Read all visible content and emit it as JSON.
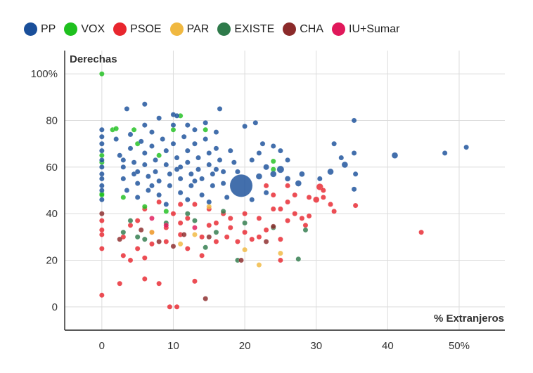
{
  "chart_data": {
    "type": "scatter",
    "xlabel": "% Extranjeros",
    "ylabel": "Derechas",
    "xlim": [
      -5.2,
      56.4
    ],
    "ylim": [
      -10,
      110
    ],
    "x_ticks": [
      "0",
      "10",
      "20",
      "30",
      "40",
      "50%"
    ],
    "x_tick_values": [
      0,
      10,
      20,
      30,
      40,
      50
    ],
    "y_ticks": [
      "0",
      "20",
      "40",
      "60",
      "80",
      "100%"
    ],
    "y_tick_values": [
      0,
      20,
      40,
      60,
      80,
      100
    ],
    "grid": true,
    "legend_placement": "top-left",
    "point_format": "[x, y, relative_size]",
    "series": [
      {
        "name": "PP",
        "color": "#1a4f9a",
        "points": [
          [
            0,
            76,
            1
          ],
          [
            0,
            73,
            1
          ],
          [
            0,
            70,
            1
          ],
          [
            0,
            67,
            1
          ],
          [
            0,
            63,
            1
          ],
          [
            0,
            60,
            1
          ],
          [
            0,
            57,
            1
          ],
          [
            0,
            55,
            1
          ],
          [
            0,
            52,
            1
          ],
          [
            0,
            50,
            1
          ],
          [
            0,
            46,
            1
          ],
          [
            3.5,
            85,
            1
          ],
          [
            6,
            87,
            1
          ],
          [
            8,
            81,
            1
          ],
          [
            10,
            82.5,
            1
          ],
          [
            10.5,
            82,
            1
          ],
          [
            12,
            78,
            1
          ],
          [
            14.5,
            79,
            1
          ],
          [
            16.5,
            85,
            1
          ],
          [
            20,
            77.5,
            1
          ],
          [
            21.5,
            79,
            1
          ],
          [
            22.5,
            70,
            1
          ],
          [
            24,
            69,
            1
          ],
          [
            25,
            67,
            1
          ],
          [
            26,
            63,
            1
          ],
          [
            30.5,
            55,
            1
          ],
          [
            32,
            58,
            1.5
          ],
          [
            32.5,
            70,
            1
          ],
          [
            33.5,
            64,
            1
          ],
          [
            34,
            61,
            1.5
          ],
          [
            35.3,
            80,
            1
          ],
          [
            35.3,
            66,
            1
          ],
          [
            35.5,
            57,
            1
          ],
          [
            35.3,
            50.5,
            1
          ],
          [
            41,
            65,
            1.5
          ],
          [
            48,
            66,
            1
          ],
          [
            51,
            68.5,
            1
          ],
          [
            25,
            59,
            2
          ],
          [
            27.5,
            53,
            1.5
          ],
          [
            24,
            57,
            1.5
          ],
          [
            22,
            56,
            1.5
          ],
          [
            23,
            60,
            1.3
          ],
          [
            26,
            55,
            1.2
          ],
          [
            28,
            57,
            1.2
          ],
          [
            2,
            72,
            1
          ],
          [
            2.5,
            65,
            1
          ],
          [
            3,
            60,
            1
          ],
          [
            3,
            55,
            1
          ],
          [
            3.5,
            50,
            1
          ],
          [
            4,
            74,
            1
          ],
          [
            4,
            68,
            1
          ],
          [
            4.5,
            62,
            1
          ],
          [
            4.5,
            57,
            1
          ],
          [
            5,
            53,
            1
          ],
          [
            5,
            47,
            1
          ],
          [
            5.5,
            71,
            1
          ],
          [
            6,
            66,
            1
          ],
          [
            6,
            61,
            1
          ],
          [
            6.5,
            56,
            1
          ],
          [
            6.5,
            50,
            1
          ],
          [
            7,
            75,
            1
          ],
          [
            7,
            69,
            1
          ],
          [
            7.5,
            63,
            1
          ],
          [
            7.5,
            58,
            1
          ],
          [
            8,
            54,
            1
          ],
          [
            8,
            48,
            1
          ],
          [
            8.5,
            72,
            1
          ],
          [
            9,
            67,
            1
          ],
          [
            9,
            61,
            1
          ],
          [
            9.5,
            57,
            1
          ],
          [
            9.5,
            52,
            1
          ],
          [
            10,
            78,
            1
          ],
          [
            10,
            70,
            1
          ],
          [
            10.5,
            64,
            1
          ],
          [
            10.5,
            59,
            1
          ],
          [
            11,
            55,
            1
          ],
          [
            11,
            49,
            1
          ],
          [
            11.5,
            73,
            1
          ],
          [
            12,
            67,
            1
          ],
          [
            12,
            62,
            1
          ],
          [
            12.5,
            57,
            1
          ],
          [
            12.5,
            52,
            1
          ],
          [
            13,
            76,
            1
          ],
          [
            13,
            70,
            1
          ],
          [
            13.5,
            64,
            1
          ],
          [
            13.5,
            59,
            1
          ],
          [
            14,
            55,
            1
          ],
          [
            14,
            48,
            1
          ],
          [
            14.5,
            72,
            1
          ],
          [
            15,
            66,
            1
          ],
          [
            15,
            61,
            1
          ],
          [
            15.5,
            57,
            1
          ],
          [
            15.5,
            52,
            1
          ],
          [
            16,
            75,
            1
          ],
          [
            16,
            68,
            1
          ],
          [
            16.5,
            63,
            1
          ],
          [
            17,
            58,
            1
          ],
          [
            17,
            53,
            1
          ],
          [
            17.5,
            47,
            1
          ],
          [
            18,
            67,
            1
          ],
          [
            18.5,
            62,
            1
          ],
          [
            19,
            58,
            1
          ],
          [
            21,
            63,
            1
          ],
          [
            21,
            46,
            1
          ],
          [
            22,
            66,
            1
          ],
          [
            23,
            49,
            1
          ],
          [
            6,
            78,
            1
          ],
          [
            9,
            44,
            1
          ],
          [
            12,
            46,
            1
          ],
          [
            15,
            45,
            1
          ],
          [
            3,
            63,
            1
          ],
          [
            5,
            58,
            1
          ],
          [
            7,
            52,
            1
          ],
          [
            11,
            60,
            1
          ],
          [
            13,
            54,
            1
          ],
          [
            16,
            59,
            1
          ],
          [
            19.5,
            52,
            20
          ]
        ]
      },
      {
        "name": "VOX",
        "color": "#1ec01e",
        "points": [
          [
            0,
            100,
            1
          ],
          [
            0,
            65,
            1
          ],
          [
            0,
            62,
            1
          ],
          [
            0,
            48.5,
            1
          ],
          [
            0,
            48,
            1
          ],
          [
            1.5,
            76,
            1
          ],
          [
            2,
            76.5,
            1
          ],
          [
            4.5,
            76,
            1
          ],
          [
            10,
            76,
            1
          ],
          [
            11,
            82,
            1
          ],
          [
            14.5,
            76,
            1
          ],
          [
            8,
            65,
            1
          ],
          [
            5,
            70,
            1
          ],
          [
            24,
            62.5,
            1
          ],
          [
            24,
            59,
            1
          ],
          [
            3,
            47,
            1
          ],
          [
            6,
            43,
            1
          ],
          [
            9,
            41,
            1
          ]
        ]
      },
      {
        "name": "PSOE",
        "color": "#e8262e",
        "points": [
          [
            0,
            5,
            1
          ],
          [
            0,
            25,
            1
          ],
          [
            0,
            31,
            1
          ],
          [
            0,
            33,
            1
          ],
          [
            0,
            37,
            1
          ],
          [
            2.5,
            10,
            1
          ],
          [
            6,
            12,
            1
          ],
          [
            8,
            10,
            1
          ],
          [
            9.5,
            0,
            1
          ],
          [
            10.5,
            0,
            1
          ],
          [
            12,
            25,
            1
          ],
          [
            13,
            11,
            1
          ],
          [
            4,
            20,
            1
          ],
          [
            6,
            21,
            1
          ],
          [
            3,
            30,
            1
          ],
          [
            4,
            35,
            1
          ],
          [
            5,
            37,
            1
          ],
          [
            7,
            32,
            1
          ],
          [
            9,
            28,
            1
          ],
          [
            10,
            40,
            1
          ],
          [
            11,
            36,
            1
          ],
          [
            12,
            38,
            1
          ],
          [
            14,
            30,
            1
          ],
          [
            15,
            35,
            1
          ],
          [
            16,
            36,
            1
          ],
          [
            17,
            40,
            1
          ],
          [
            18,
            38,
            1
          ],
          [
            20,
            32,
            1
          ],
          [
            21,
            29,
            1
          ],
          [
            22,
            30,
            1
          ],
          [
            23,
            33,
            1
          ],
          [
            25,
            20,
            1
          ],
          [
            25,
            29,
            1
          ],
          [
            25,
            42,
            1
          ],
          [
            26,
            45,
            1
          ],
          [
            27,
            48,
            1
          ],
          [
            28,
            38,
            1
          ],
          [
            28.5,
            35,
            1
          ],
          [
            29,
            39,
            1
          ],
          [
            30,
            46,
            1.5
          ],
          [
            30.5,
            51.5,
            1.8
          ],
          [
            31,
            47,
            1
          ],
          [
            32,
            44,
            1
          ],
          [
            32.5,
            41,
            1
          ],
          [
            35.5,
            43.5,
            1
          ],
          [
            44.7,
            32,
            1
          ],
          [
            17.5,
            30,
            1
          ],
          [
            19,
            28,
            1
          ],
          [
            13,
            44,
            1
          ],
          [
            8,
            45,
            1
          ],
          [
            6,
            42,
            1
          ],
          [
            9,
            34,
            1
          ],
          [
            11,
            31,
            1
          ],
          [
            3,
            22,
            1
          ],
          [
            7,
            27,
            1
          ],
          [
            5,
            25,
            1
          ],
          [
            14,
            22,
            1
          ],
          [
            16,
            28,
            1
          ],
          [
            18,
            34,
            1
          ],
          [
            20,
            40,
            1
          ],
          [
            22,
            38,
            1
          ],
          [
            24,
            42,
            1
          ],
          [
            26,
            37,
            1
          ],
          [
            27,
            40,
            1
          ],
          [
            29,
            47,
            1
          ],
          [
            31,
            50,
            1
          ],
          [
            23,
            52,
            1
          ],
          [
            24,
            48,
            1
          ],
          [
            26,
            52,
            1
          ],
          [
            11,
            44,
            1
          ],
          [
            15,
            42,
            1
          ]
        ]
      },
      {
        "name": "PAR",
        "color": "#f0b840",
        "points": [
          [
            11,
            27,
            1
          ],
          [
            15,
            43,
            1
          ],
          [
            20,
            24.5,
            1
          ],
          [
            22,
            18,
            1
          ],
          [
            25,
            23,
            1
          ],
          [
            13,
            31,
            1
          ],
          [
            7,
            32,
            1
          ]
        ]
      },
      {
        "name": "EXISTE",
        "color": "#2e7a4a",
        "points": [
          [
            3,
            32,
            1
          ],
          [
            4,
            37,
            1
          ],
          [
            5,
            30,
            1
          ],
          [
            9,
            36,
            1
          ],
          [
            12,
            40,
            1
          ],
          [
            13,
            37,
            1
          ],
          [
            14.5,
            25.5,
            1
          ],
          [
            16,
            32,
            1
          ],
          [
            19,
            20,
            1
          ],
          [
            24,
            34,
            1
          ],
          [
            27.5,
            20.5,
            1
          ],
          [
            28.5,
            33,
            1
          ],
          [
            17,
            41,
            1
          ],
          [
            20,
            36,
            1
          ],
          [
            6,
            29,
            1
          ]
        ]
      },
      {
        "name": "CHA",
        "color": "#8b2a2a",
        "points": [
          [
            0,
            40,
            1
          ],
          [
            2.5,
            29,
            1
          ],
          [
            5.5,
            33,
            1
          ],
          [
            8,
            28,
            1
          ],
          [
            10,
            26,
            1
          ],
          [
            11.5,
            31,
            1
          ],
          [
            14.5,
            3.5,
            1
          ],
          [
            15,
            30,
            1
          ],
          [
            19.5,
            20,
            1
          ],
          [
            24,
            34.5,
            1
          ],
          [
            23,
            28,
            1
          ]
        ]
      },
      {
        "name": "IU+Sumar",
        "color": "#e0185a",
        "points": [
          [
            9,
            35,
            1
          ],
          [
            13,
            34,
            1
          ],
          [
            7,
            38,
            1
          ]
        ]
      }
    ]
  }
}
